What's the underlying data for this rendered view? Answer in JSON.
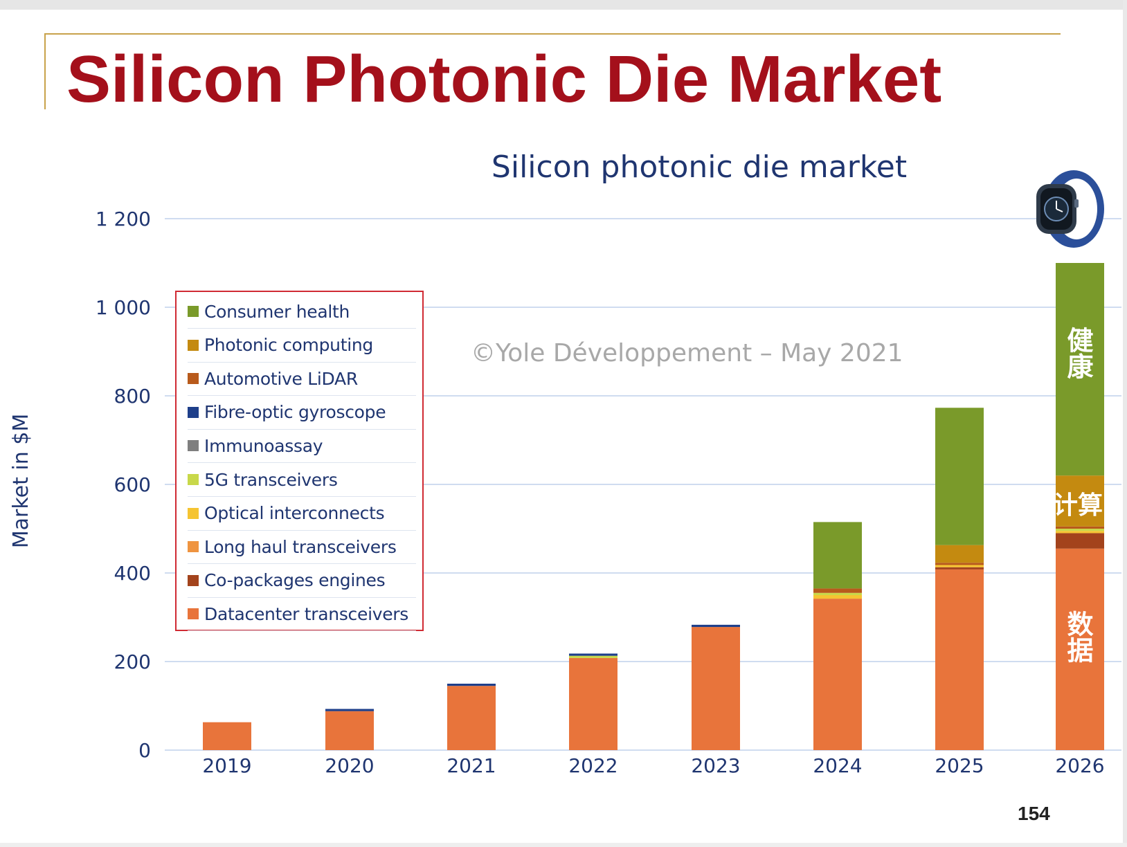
{
  "slide": {
    "title": "Silicon Photonic Die Market",
    "page_number": "154"
  },
  "watermark": "©Yole Développement – May 2021",
  "annotations": {
    "consumer_health_cn": "健康",
    "computing_cn": "计算",
    "datacenter_cn": "数据"
  },
  "chart_data": {
    "type": "bar",
    "stacked": true,
    "title": "Silicon photonic die market",
    "ylabel": "Market in $M",
    "xlabel": "",
    "ylim": [
      0,
      1200
    ],
    "yticks": [
      0,
      200,
      400,
      600,
      800,
      1000,
      1200
    ],
    "ytick_labels": [
      "0",
      "200",
      "400",
      "600",
      "800",
      "1 000",
      "1 200"
    ],
    "grid": true,
    "legend_placement": "left",
    "categories": [
      "2019",
      "2020",
      "2021",
      "2022",
      "2023",
      "2024",
      "2025",
      "2026"
    ],
    "series": [
      {
        "name": "Datacenter transceivers",
        "color": "#e8743b",
        "values": [
          63,
          88,
          145,
          208,
          278,
          342,
          408,
          455
        ]
      },
      {
        "name": "Co-packages engines",
        "color": "#a3431c",
        "values": [
          0,
          0,
          0,
          0,
          0,
          0,
          5,
          35
        ]
      },
      {
        "name": "Long haul transceivers",
        "color": "#ef9440",
        "values": [
          0,
          0,
          0,
          0,
          0,
          0,
          0,
          0
        ]
      },
      {
        "name": "Optical interconnects",
        "color": "#f5c431",
        "values": [
          0,
          0,
          0,
          0,
          0,
          8,
          5,
          5
        ]
      },
      {
        "name": "5G transceivers",
        "color": "#c8d84a",
        "values": [
          0,
          0,
          0,
          5,
          0,
          5,
          0,
          5
        ]
      },
      {
        "name": "Immunoassay",
        "color": "#7f7f7f",
        "values": [
          0,
          0,
          0,
          0,
          0,
          0,
          0,
          0
        ]
      },
      {
        "name": "Fibre-optic gyroscope",
        "color": "#1e3f8a",
        "values": [
          0,
          5,
          5,
          5,
          5,
          0,
          0,
          0
        ]
      },
      {
        "name": "Automotive LiDAR",
        "color": "#b85a1b",
        "values": [
          0,
          0,
          0,
          0,
          0,
          10,
          5,
          5
        ]
      },
      {
        "name": "Photonic computing",
        "color": "#c48a10",
        "values": [
          0,
          0,
          0,
          0,
          0,
          0,
          40,
          115
        ]
      },
      {
        "name": "Consumer health",
        "color": "#7a9a2a",
        "values": [
          0,
          0,
          0,
          0,
          0,
          150,
          310,
          480
        ]
      }
    ]
  }
}
